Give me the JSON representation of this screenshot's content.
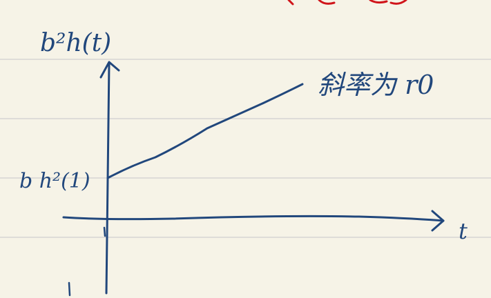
{
  "colors": {
    "paper": "#f6f3e7",
    "rule_lines": "#cfcfcf",
    "ink": "#21477c",
    "red_ink": "#d0141a"
  },
  "labels": {
    "y_axis": "b²h(t)",
    "intercept": "b h²(1)",
    "x_axis": "t",
    "slope_note": "斜率为 r0"
  }
}
